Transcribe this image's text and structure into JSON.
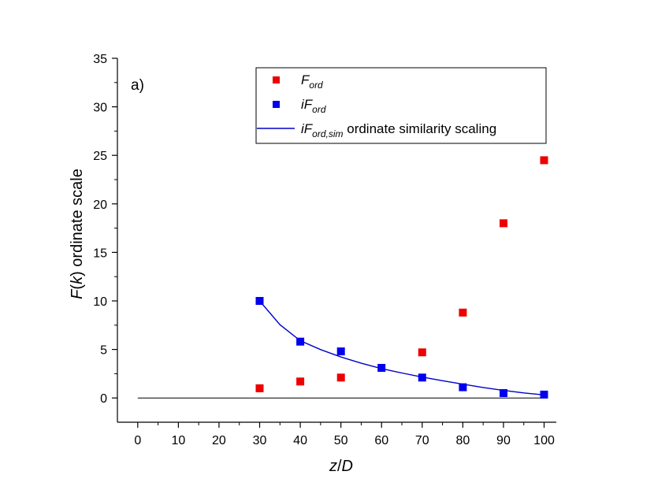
{
  "chart_data": {
    "type": "scatter",
    "panel_label": "a)",
    "xlabel": {
      "main": "z",
      "sep": "/",
      "var": "D"
    },
    "ylabel": {
      "f": "F",
      "open": "(",
      "k": "k",
      "close": ")",
      "rest": " ordinate scale"
    },
    "xlim": [
      -5,
      103
    ],
    "ylim": [
      -2.5,
      35
    ],
    "xticks": [
      0,
      10,
      20,
      30,
      40,
      50,
      60,
      70,
      80,
      90,
      100
    ],
    "yticks": [
      0,
      5,
      10,
      15,
      20,
      25,
      30,
      35
    ],
    "series": [
      {
        "name": "F_ord",
        "legend": {
          "base": "F",
          "sub": "ord"
        },
        "kind": "marker",
        "color": "#ee0000",
        "x": [
          30,
          40,
          50,
          70,
          80,
          90,
          100
        ],
        "y": [
          1.0,
          1.7,
          2.1,
          4.7,
          8.8,
          18.0,
          24.5
        ]
      },
      {
        "name": "iF_ord",
        "legend": {
          "base": "iF",
          "sub": "ord"
        },
        "kind": "marker",
        "color": "#0000ee",
        "x": [
          30,
          40,
          50,
          60,
          70,
          80,
          90,
          100
        ],
        "y": [
          10.0,
          5.8,
          4.8,
          3.1,
          2.1,
          1.1,
          0.5,
          0.35
        ]
      },
      {
        "name": "iF_ord,sim",
        "legend": {
          "base": "iF",
          "sub": "ord,sim",
          "rest": " ordinate similarity scaling"
        },
        "kind": "line",
        "color": "#0000cc",
        "x": [
          30,
          35,
          40,
          45,
          50,
          55,
          60,
          65,
          70,
          75,
          80,
          85,
          90,
          95,
          100
        ],
        "y": [
          10.0,
          7.55,
          5.9,
          4.98,
          4.22,
          3.58,
          3.03,
          2.57,
          2.15,
          1.78,
          1.42,
          1.08,
          0.78,
          0.52,
          0.32
        ]
      },
      {
        "name": "zero-line",
        "kind": "baseline",
        "color": "#000000",
        "x": [
          0,
          100
        ],
        "y": [
          0,
          0
        ]
      }
    ]
  }
}
